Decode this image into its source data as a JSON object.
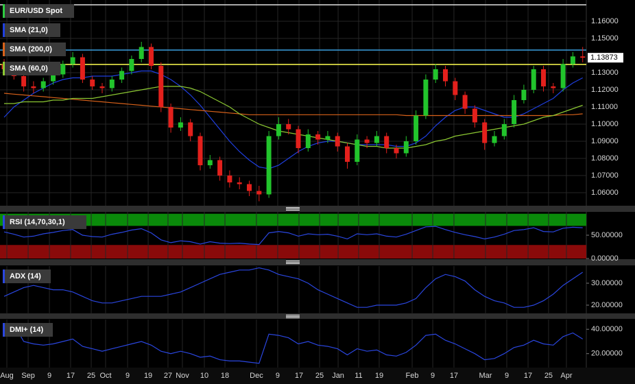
{
  "chart_data": [
    {
      "type": "candlestick",
      "symbol": "EUR/USD Spot",
      "symbol_color": "#2ecc40",
      "up_color": "#22c42c",
      "down_color": "#e3201c",
      "xlim": [
        -0.42,
        59.37
      ],
      "ylim": [
        1.0524,
        1.1724
      ],
      "grid": true,
      "yticks": [
        {
          "value": 1.06,
          "label": "1.06000"
        },
        {
          "value": 1.07,
          "label": "1.07000"
        },
        {
          "value": 1.08,
          "label": "1.08000"
        },
        {
          "value": 1.09,
          "label": "1.09000"
        },
        {
          "value": 1.1,
          "label": "1.10000"
        },
        {
          "value": 1.11,
          "label": "1.11000"
        },
        {
          "value": 1.12,
          "label": "1.12000"
        },
        {
          "value": 1.13,
          "label": "1.13000"
        },
        {
          "value": 1.15,
          "label": "1.15000"
        },
        {
          "value": 1.16,
          "label": "1.16000"
        }
      ],
      "hlines": [
        {
          "value": 1.1696,
          "color": "#e0e0e0"
        },
        {
          "value": 1.1432,
          "color": "#3aa0e0"
        },
        {
          "value": 1.1348,
          "color": "#ffff50"
        }
      ],
      "candles": [
        [
          1.135,
          1.138,
          1.129,
          1.132
        ],
        [
          1.132,
          1.134,
          1.126,
          1.128
        ],
        [
          1.128,
          1.13,
          1.119,
          1.122
        ],
        [
          1.122,
          1.125,
          1.118,
          1.121
        ],
        [
          1.121,
          1.127,
          1.119,
          1.125
        ],
        [
          1.125,
          1.131,
          1.123,
          1.129
        ],
        [
          1.129,
          1.137,
          1.127,
          1.135
        ],
        [
          1.135,
          1.142,
          1.133,
          1.139
        ],
        [
          1.139,
          1.141,
          1.124,
          1.126
        ],
        [
          1.126,
          1.128,
          1.12,
          1.122
        ],
        [
          1.122,
          1.124,
          1.118,
          1.121
        ],
        [
          1.121,
          1.128,
          1.119,
          1.126
        ],
        [
          1.126,
          1.133,
          1.124,
          1.131
        ],
        [
          1.131,
          1.14,
          1.129,
          1.138
        ],
        [
          1.138,
          1.148,
          1.136,
          1.145
        ],
        [
          1.145,
          1.147,
          1.132,
          1.134
        ],
        [
          1.134,
          1.136,
          1.107,
          1.11
        ],
        [
          1.11,
          1.112,
          1.095,
          1.098
        ],
        [
          1.098,
          1.104,
          1.096,
          1.101
        ],
        [
          1.101,
          1.103,
          1.09,
          1.093
        ],
        [
          1.093,
          1.095,
          1.073,
          1.076
        ],
        [
          1.076,
          1.082,
          1.074,
          1.079
        ],
        [
          1.079,
          1.081,
          1.067,
          1.07
        ],
        [
          1.07,
          1.073,
          1.063,
          1.066
        ],
        [
          1.066,
          1.069,
          1.062,
          1.065
        ],
        [
          1.065,
          1.067,
          1.058,
          1.061
        ],
        [
          1.061,
          1.064,
          1.055,
          1.059
        ],
        [
          1.059,
          1.096,
          1.057,
          1.093
        ],
        [
          1.093,
          1.104,
          1.091,
          1.1
        ],
        [
          1.1,
          1.103,
          1.094,
          1.097
        ],
        [
          1.097,
          1.099,
          1.083,
          1.086
        ],
        [
          1.086,
          1.097,
          1.084,
          1.094
        ],
        [
          1.094,
          1.096,
          1.088,
          1.091
        ],
        [
          1.091,
          1.096,
          1.089,
          1.093
        ],
        [
          1.093,
          1.095,
          1.084,
          1.087
        ],
        [
          1.087,
          1.089,
          1.074,
          1.078
        ],
        [
          1.078,
          1.094,
          1.076,
          1.091
        ],
        [
          1.091,
          1.093,
          1.086,
          1.089
        ],
        [
          1.089,
          1.096,
          1.087,
          1.093
        ],
        [
          1.093,
          1.095,
          1.083,
          1.086
        ],
        [
          1.086,
          1.088,
          1.08,
          1.083
        ],
        [
          1.083,
          1.093,
          1.081,
          1.09
        ],
        [
          1.09,
          1.108,
          1.088,
          1.105
        ],
        [
          1.105,
          1.129,
          1.103,
          1.126
        ],
        [
          1.126,
          1.135,
          1.124,
          1.132
        ],
        [
          1.132,
          1.134,
          1.122,
          1.125
        ],
        [
          1.125,
          1.127,
          1.114,
          1.117
        ],
        [
          1.117,
          1.119,
          1.106,
          1.109
        ],
        [
          1.109,
          1.111,
          1.098,
          1.101
        ],
        [
          1.101,
          1.103,
          1.085,
          1.089
        ],
        [
          1.089,
          1.096,
          1.087,
          1.093
        ],
        [
          1.093,
          1.103,
          1.091,
          1.1
        ],
        [
          1.1,
          1.117,
          1.098,
          1.114
        ],
        [
          1.114,
          1.123,
          1.112,
          1.12
        ],
        [
          1.12,
          1.134,
          1.118,
          1.132
        ],
        [
          1.132,
          1.134,
          1.119,
          1.122
        ],
        [
          1.122,
          1.124,
          1.118,
          1.121
        ],
        [
          1.121,
          1.138,
          1.119,
          1.135
        ],
        [
          1.135,
          1.142,
          1.133,
          1.1395
        ],
        [
          1.1395,
          1.145,
          1.136,
          1.13873
        ]
      ],
      "series": [
        {
          "name": "SMA (21,0)",
          "color": "#1f3fe0",
          "values": [
            1.104,
            1.11,
            1.114,
            1.118,
            1.121,
            1.124,
            1.126,
            1.127,
            1.127,
            1.128,
            1.128,
            1.128,
            1.129,
            1.13,
            1.131,
            1.131,
            1.129,
            1.126,
            1.122,
            1.117,
            1.111,
            1.104,
            1.097,
            1.09,
            1.084,
            1.079,
            1.075,
            1.074,
            1.076,
            1.08,
            1.084,
            1.087,
            1.089,
            1.09,
            1.09,
            1.089,
            1.088,
            1.088,
            1.088,
            1.088,
            1.087,
            1.087,
            1.089,
            1.093,
            1.099,
            1.104,
            1.108,
            1.11,
            1.11,
            1.108,
            1.106,
            1.104,
            1.104,
            1.106,
            1.109,
            1.112,
            1.115,
            1.12,
            1.124,
            1.127
          ]
        },
        {
          "name": "SMA (200,0)",
          "color": "#d9621a",
          "values": [
            1.118,
            1.1175,
            1.117,
            1.1165,
            1.116,
            1.1155,
            1.115,
            1.1145,
            1.114,
            1.1135,
            1.113,
            1.1125,
            1.112,
            1.1115,
            1.111,
            1.1105,
            1.11,
            1.1095,
            1.109,
            1.1085,
            1.108,
            1.1075,
            1.107,
            1.1065,
            1.106,
            1.1055,
            1.1055,
            1.1055,
            1.1055,
            1.1055,
            1.1055,
            1.1055,
            1.1055,
            1.1055,
            1.1055,
            1.1055,
            1.1055,
            1.1055,
            1.1055,
            1.1055,
            1.1055,
            1.105,
            1.105,
            1.105,
            1.105,
            1.105,
            1.105,
            1.105,
            1.105,
            1.105,
            1.105,
            1.105,
            1.105,
            1.105,
            1.105,
            1.105,
            1.105,
            1.1055,
            1.1055,
            1.106
          ]
        },
        {
          "name": "SMA (60,0)",
          "color": "#8cc832",
          "values": [
            1.112,
            1.112,
            1.113,
            1.113,
            1.113,
            1.114,
            1.114,
            1.115,
            1.115,
            1.115,
            1.116,
            1.117,
            1.118,
            1.119,
            1.12,
            1.121,
            1.122,
            1.122,
            1.122,
            1.121,
            1.119,
            1.116,
            1.113,
            1.11,
            1.106,
            1.103,
            1.1,
            1.098,
            1.096,
            1.095,
            1.094,
            1.093,
            1.092,
            1.091,
            1.09,
            1.089,
            1.088,
            1.087,
            1.087,
            1.086,
            1.086,
            1.086,
            1.087,
            1.088,
            1.09,
            1.091,
            1.093,
            1.094,
            1.095,
            1.096,
            1.097,
            1.098,
            1.099,
            1.1,
            1.102,
            1.104,
            1.105,
            1.107,
            1.109,
            1.111
          ]
        }
      ]
    },
    {
      "type": "line",
      "xlim": [
        -0.42,
        59.37
      ],
      "ylim": [
        0,
        100
      ],
      "yticks": [
        {
          "value": 0,
          "label": "0.00000"
        },
        {
          "value": 50,
          "label": "50.00000"
        }
      ],
      "bands": [
        {
          "from": 70,
          "to": 96,
          "color": "#0a8a0a"
        },
        {
          "from": 0,
          "to": 29,
          "color": "#8a0a0a"
        }
      ],
      "series": [
        {
          "name": "RSI (14,70,30,1)",
          "color": "#2a46e0",
          "values": [
            57,
            52,
            46,
            48,
            53,
            56,
            60,
            62,
            50,
            47,
            46,
            52,
            56,
            61,
            64,
            55,
            40,
            34,
            38,
            36,
            31,
            36,
            33,
            32,
            33,
            31,
            30,
            55,
            58,
            55,
            48,
            53,
            51,
            52,
            48,
            42,
            53,
            51,
            53,
            48,
            46,
            52,
            60,
            68,
            69,
            62,
            56,
            51,
            47,
            42,
            46,
            52,
            60,
            62,
            66,
            58,
            57,
            65,
            67,
            66
          ]
        }
      ]
    },
    {
      "type": "line",
      "xlim": [
        -0.42,
        59.37
      ],
      "ylim": [
        15.94,
        37.81
      ],
      "yticks": [
        {
          "value": 20,
          "label": "20.00000"
        },
        {
          "value": 30,
          "label": "30.00000"
        }
      ],
      "series": [
        {
          "name": "ADX (14)",
          "color": "#2a46e0",
          "values": [
            24,
            26,
            28,
            29,
            28,
            27,
            27,
            26,
            24,
            22,
            21,
            21,
            22,
            23,
            24,
            24,
            24,
            25,
            26,
            28,
            30,
            32,
            34,
            35,
            36,
            36,
            37,
            36,
            34,
            33,
            32,
            30,
            27,
            25,
            23,
            21,
            19,
            19,
            20,
            20,
            20,
            21,
            23,
            28,
            32,
            34,
            33,
            31,
            27,
            24,
            22,
            21,
            19,
            19,
            20,
            22,
            25,
            29,
            32,
            35
          ]
        }
      ]
    },
    {
      "type": "line",
      "xlim": [
        -0.42,
        59.37
      ],
      "ylim": [
        8.57,
        48
      ],
      "yticks": [
        {
          "value": 20,
          "label": "20.00000"
        },
        {
          "value": 40,
          "label": "40.00000"
        }
      ],
      "xticks": [
        {
          "value": 0.28,
          "label": "Aug"
        },
        {
          "value": 2.45,
          "label": "Sep"
        },
        {
          "value": 4.62,
          "label": "9"
        },
        {
          "value": 6.78,
          "label": "17"
        },
        {
          "value": 8.88,
          "label": "25"
        },
        {
          "value": 10.35,
          "label": "Oct"
        },
        {
          "value": 12.59,
          "label": "9"
        },
        {
          "value": 14.69,
          "label": "19"
        },
        {
          "value": 16.71,
          "label": "27"
        },
        {
          "value": 18.18,
          "label": "Nov"
        },
        {
          "value": 20.42,
          "label": "10"
        },
        {
          "value": 22.52,
          "label": "18"
        },
        {
          "value": 25.73,
          "label": "Dec"
        },
        {
          "value": 27.9,
          "label": "9"
        },
        {
          "value": 30.07,
          "label": "17"
        },
        {
          "value": 32.17,
          "label": "25"
        },
        {
          "value": 34.06,
          "label": "Jan"
        },
        {
          "value": 36.15,
          "label": "11"
        },
        {
          "value": 38.25,
          "label": "19"
        },
        {
          "value": 41.61,
          "label": "Feb"
        },
        {
          "value": 43.71,
          "label": "9"
        },
        {
          "value": 45.87,
          "label": "17"
        },
        {
          "value": 49.09,
          "label": "Mar"
        },
        {
          "value": 51.26,
          "label": "9"
        },
        {
          "value": 53.43,
          "label": "17"
        },
        {
          "value": 55.52,
          "label": "25"
        },
        {
          "value": 57.34,
          "label": "Apr"
        }
      ],
      "series": [
        {
          "name": "DMI+ (14)",
          "color": "#2a46e0",
          "values": [
            38,
            44,
            30,
            28,
            27,
            28,
            30,
            32,
            26,
            24,
            22,
            24,
            26,
            28,
            30,
            27,
            22,
            20,
            22,
            20,
            17,
            18,
            15,
            14,
            14,
            13,
            12,
            36,
            35,
            33,
            28,
            30,
            27,
            26,
            24,
            19,
            24,
            22,
            23,
            19,
            18,
            21,
            27,
            35,
            36,
            31,
            28,
            24,
            20,
            15,
            16,
            20,
            25,
            27,
            31,
            28,
            27,
            34,
            37,
            32
          ]
        }
      ]
    }
  ]
}
